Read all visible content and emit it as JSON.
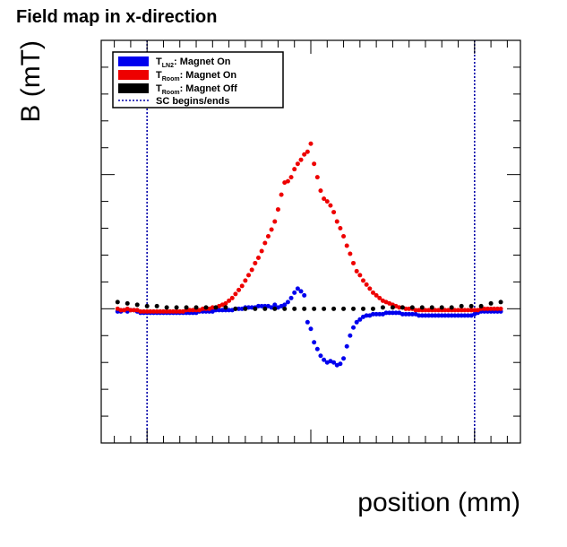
{
  "chart_data": {
    "type": "scatter",
    "title": "Field map in x-direction",
    "xlabel": "position (mm)",
    "ylabel": "B (mT)",
    "xlim": [
      -640,
      640
    ],
    "ylim": [
      -1,
      2
    ],
    "xticks": [
      -500,
      0,
      500
    ],
    "yticks": [
      -1,
      0,
      1,
      2
    ],
    "legend_position": "top-left",
    "series": [
      {
        "name": "T_LN2: Magnet On",
        "label_main": "T",
        "label_sub": "LN2",
        "label_rest": ": Magnet On",
        "color": "#0000ee",
        "marker": "box",
        "points": [
          [
            -590,
            -0.02
          ],
          [
            -580,
            -0.02
          ],
          [
            -570,
            -0.01
          ],
          [
            -560,
            -0.02
          ],
          [
            -550,
            -0.01
          ],
          [
            -540,
            -0.01
          ],
          [
            -530,
            -0.02
          ],
          [
            -520,
            -0.03
          ],
          [
            -510,
            -0.03
          ],
          [
            -500,
            -0.03
          ],
          [
            -490,
            -0.03
          ],
          [
            -480,
            -0.03
          ],
          [
            -470,
            -0.03
          ],
          [
            -460,
            -0.03
          ],
          [
            -450,
            -0.03
          ],
          [
            -440,
            -0.03
          ],
          [
            -430,
            -0.03
          ],
          [
            -420,
            -0.03
          ],
          [
            -410,
            -0.03
          ],
          [
            -400,
            -0.03
          ],
          [
            -390,
            -0.03
          ],
          [
            -380,
            -0.03
          ],
          [
            -370,
            -0.03
          ],
          [
            -360,
            -0.03
          ],
          [
            -350,
            -0.03
          ],
          [
            -340,
            -0.02
          ],
          [
            -330,
            -0.02
          ],
          [
            -320,
            -0.02
          ],
          [
            -310,
            -0.02
          ],
          [
            -300,
            -0.02
          ],
          [
            -290,
            -0.01
          ],
          [
            -280,
            -0.01
          ],
          [
            -270,
            -0.01
          ],
          [
            -260,
            -0.01
          ],
          [
            -250,
            -0.01
          ],
          [
            -240,
            -0.01
          ],
          [
            -230,
            0.0
          ],
          [
            -220,
            0.0
          ],
          [
            -210,
            0.0
          ],
          [
            -200,
            0.01
          ],
          [
            -190,
            0.01
          ],
          [
            -180,
            0.01
          ],
          [
            -170,
            0.01
          ],
          [
            -160,
            0.02
          ],
          [
            -150,
            0.02
          ],
          [
            -140,
            0.02
          ],
          [
            -130,
            0.02
          ],
          [
            -120,
            0.01
          ],
          [
            -110,
            0.03
          ],
          [
            -100,
            0.01
          ],
          [
            -90,
            0.02
          ],
          [
            -80,
            0.03
          ],
          [
            -70,
            0.05
          ],
          [
            -60,
            0.08
          ],
          [
            -50,
            0.12
          ],
          [
            -40,
            0.15
          ],
          [
            -30,
            0.13
          ],
          [
            -20,
            0.1
          ],
          [
            -10,
            -0.1
          ],
          [
            0,
            -0.15
          ],
          [
            10,
            -0.25
          ],
          [
            20,
            -0.3
          ],
          [
            30,
            -0.35
          ],
          [
            40,
            -0.38
          ],
          [
            50,
            -0.4
          ],
          [
            60,
            -0.39
          ],
          [
            70,
            -0.4
          ],
          [
            80,
            -0.42
          ],
          [
            90,
            -0.41
          ],
          [
            100,
            -0.37
          ],
          [
            110,
            -0.28
          ],
          [
            120,
            -0.2
          ],
          [
            130,
            -0.14
          ],
          [
            140,
            -0.1
          ],
          [
            150,
            -0.08
          ],
          [
            160,
            -0.06
          ],
          [
            170,
            -0.05
          ],
          [
            180,
            -0.05
          ],
          [
            190,
            -0.04
          ],
          [
            200,
            -0.04
          ],
          [
            210,
            -0.04
          ],
          [
            220,
            -0.04
          ],
          [
            230,
            -0.03
          ],
          [
            240,
            -0.03
          ],
          [
            250,
            -0.03
          ],
          [
            260,
            -0.03
          ],
          [
            270,
            -0.03
          ],
          [
            280,
            -0.04
          ],
          [
            290,
            -0.04
          ],
          [
            300,
            -0.04
          ],
          [
            310,
            -0.04
          ],
          [
            320,
            -0.04
          ],
          [
            330,
            -0.05
          ],
          [
            340,
            -0.05
          ],
          [
            350,
            -0.05
          ],
          [
            360,
            -0.05
          ],
          [
            370,
            -0.05
          ],
          [
            380,
            -0.05
          ],
          [
            390,
            -0.05
          ],
          [
            400,
            -0.05
          ],
          [
            410,
            -0.05
          ],
          [
            420,
            -0.05
          ],
          [
            430,
            -0.05
          ],
          [
            440,
            -0.05
          ],
          [
            450,
            -0.05
          ],
          [
            460,
            -0.05
          ],
          [
            470,
            -0.05
          ],
          [
            480,
            -0.05
          ],
          [
            490,
            -0.05
          ],
          [
            500,
            -0.04
          ],
          [
            510,
            -0.03
          ],
          [
            520,
            -0.02
          ],
          [
            530,
            -0.02
          ],
          [
            540,
            -0.02
          ],
          [
            550,
            -0.02
          ],
          [
            560,
            -0.02
          ],
          [
            570,
            -0.02
          ],
          [
            580,
            -0.02
          ]
        ]
      },
      {
        "name": "T_Room: Magnet On",
        "label_main": "T",
        "label_sub": "Room",
        "label_rest": ": Magnet On",
        "color": "#ee0000",
        "marker": "box",
        "points": [
          [
            -590,
            0.0
          ],
          [
            -580,
            -0.01
          ],
          [
            -570,
            -0.01
          ],
          [
            -560,
            0.0
          ],
          [
            -550,
            -0.01
          ],
          [
            -540,
            -0.01
          ],
          [
            -530,
            -0.01
          ],
          [
            -520,
            -0.02
          ],
          [
            -510,
            -0.02
          ],
          [
            -500,
            -0.02
          ],
          [
            -490,
            -0.02
          ],
          [
            -480,
            -0.02
          ],
          [
            -470,
            -0.02
          ],
          [
            -460,
            -0.02
          ],
          [
            -450,
            -0.02
          ],
          [
            -440,
            -0.02
          ],
          [
            -430,
            -0.02
          ],
          [
            -420,
            -0.02
          ],
          [
            -410,
            -0.02
          ],
          [
            -400,
            -0.02
          ],
          [
            -390,
            -0.02
          ],
          [
            -380,
            -0.01
          ],
          [
            -370,
            -0.01
          ],
          [
            -360,
            -0.01
          ],
          [
            -350,
            -0.01
          ],
          [
            -340,
            -0.01
          ],
          [
            -330,
            0.0
          ],
          [
            -320,
            0.0
          ],
          [
            -310,
            0.0
          ],
          [
            -300,
            0.01
          ],
          [
            -290,
            0.01
          ],
          [
            -280,
            0.02
          ],
          [
            -270,
            0.03
          ],
          [
            -260,
            0.04
          ],
          [
            -250,
            0.06
          ],
          [
            -240,
            0.08
          ],
          [
            -230,
            0.11
          ],
          [
            -220,
            0.14
          ],
          [
            -210,
            0.17
          ],
          [
            -200,
            0.21
          ],
          [
            -190,
            0.25
          ],
          [
            -180,
            0.29
          ],
          [
            -170,
            0.34
          ],
          [
            -160,
            0.38
          ],
          [
            -150,
            0.43
          ],
          [
            -140,
            0.49
          ],
          [
            -130,
            0.54
          ],
          [
            -120,
            0.59
          ],
          [
            -110,
            0.65
          ],
          [
            -100,
            0.74
          ],
          [
            -90,
            0.85
          ],
          [
            -80,
            0.94
          ],
          [
            -70,
            0.95
          ],
          [
            -60,
            0.98
          ],
          [
            -50,
            1.04
          ],
          [
            -40,
            1.08
          ],
          [
            -30,
            1.11
          ],
          [
            -20,
            1.15
          ],
          [
            -10,
            1.17
          ],
          [
            0,
            1.23
          ],
          [
            10,
            1.08
          ],
          [
            20,
            0.98
          ],
          [
            30,
            0.88
          ],
          [
            40,
            0.82
          ],
          [
            50,
            0.8
          ],
          [
            60,
            0.77
          ],
          [
            70,
            0.72
          ],
          [
            80,
            0.65
          ],
          [
            90,
            0.6
          ],
          [
            100,
            0.54
          ],
          [
            110,
            0.47
          ],
          [
            120,
            0.41
          ],
          [
            130,
            0.34
          ],
          [
            140,
            0.28
          ],
          [
            150,
            0.25
          ],
          [
            160,
            0.21
          ],
          [
            170,
            0.18
          ],
          [
            180,
            0.15
          ],
          [
            190,
            0.12
          ],
          [
            200,
            0.1
          ],
          [
            210,
            0.08
          ],
          [
            220,
            0.06
          ],
          [
            230,
            0.05
          ],
          [
            240,
            0.04
          ],
          [
            250,
            0.03
          ],
          [
            260,
            0.02
          ],
          [
            270,
            0.01
          ],
          [
            280,
            0.01
          ],
          [
            290,
            0.0
          ],
          [
            300,
            0.0
          ],
          [
            310,
            0.0
          ],
          [
            320,
            -0.01
          ],
          [
            330,
            -0.01
          ],
          [
            340,
            -0.01
          ],
          [
            350,
            -0.01
          ],
          [
            360,
            -0.01
          ],
          [
            370,
            -0.01
          ],
          [
            380,
            -0.01
          ],
          [
            390,
            -0.01
          ],
          [
            400,
            -0.01
          ],
          [
            410,
            -0.01
          ],
          [
            420,
            -0.01
          ],
          [
            430,
            -0.01
          ],
          [
            440,
            -0.01
          ],
          [
            450,
            -0.01
          ],
          [
            460,
            -0.01
          ],
          [
            470,
            -0.01
          ],
          [
            480,
            -0.01
          ],
          [
            490,
            -0.01
          ],
          [
            500,
            -0.01
          ],
          [
            510,
            -0.01
          ],
          [
            520,
            0.0
          ],
          [
            530,
            0.0
          ],
          [
            540,
            0.0
          ],
          [
            550,
            0.0
          ],
          [
            560,
            0.0
          ],
          [
            570,
            0.0
          ],
          [
            580,
            0.0
          ]
        ]
      },
      {
        "name": "T_Room: Magnet Off",
        "label_main": "T",
        "label_sub": "Room",
        "label_rest": ": Magnet Off",
        "color": "#000000",
        "marker": "box",
        "points": [
          [
            -590,
            0.05
          ],
          [
            -560,
            0.04
          ],
          [
            -530,
            0.03
          ],
          [
            -500,
            0.02
          ],
          [
            -470,
            0.02
          ],
          [
            -440,
            0.01
          ],
          [
            -410,
            0.01
          ],
          [
            -380,
            0.01
          ],
          [
            -350,
            0.01
          ],
          [
            -320,
            0.01
          ],
          [
            -290,
            0.01
          ],
          [
            -260,
            0.01
          ],
          [
            -230,
            0.0
          ],
          [
            -200,
            0.0
          ],
          [
            -170,
            0.0
          ],
          [
            -140,
            0.0
          ],
          [
            -110,
            0.0
          ],
          [
            -80,
            0.0
          ],
          [
            -50,
            0.0
          ],
          [
            -20,
            0.0
          ],
          [
            10,
            0.0
          ],
          [
            40,
            0.0
          ],
          [
            70,
            0.0
          ],
          [
            100,
            0.0
          ],
          [
            130,
            0.0
          ],
          [
            160,
            0.0
          ],
          [
            190,
            0.0
          ],
          [
            220,
            0.01
          ],
          [
            250,
            0.01
          ],
          [
            280,
            0.01
          ],
          [
            310,
            0.01
          ],
          [
            340,
            0.01
          ],
          [
            370,
            0.01
          ],
          [
            400,
            0.01
          ],
          [
            430,
            0.01
          ],
          [
            460,
            0.02
          ],
          [
            490,
            0.02
          ],
          [
            520,
            0.02
          ],
          [
            550,
            0.04
          ],
          [
            580,
            0.05
          ]
        ]
      },
      {
        "name": "SC begins/ends",
        "label_main": "SC begins/ends",
        "label_sub": "",
        "label_rest": "",
        "color": "#0000aa",
        "marker": "dotted-line",
        "vlines": [
          -500,
          500
        ]
      }
    ]
  }
}
